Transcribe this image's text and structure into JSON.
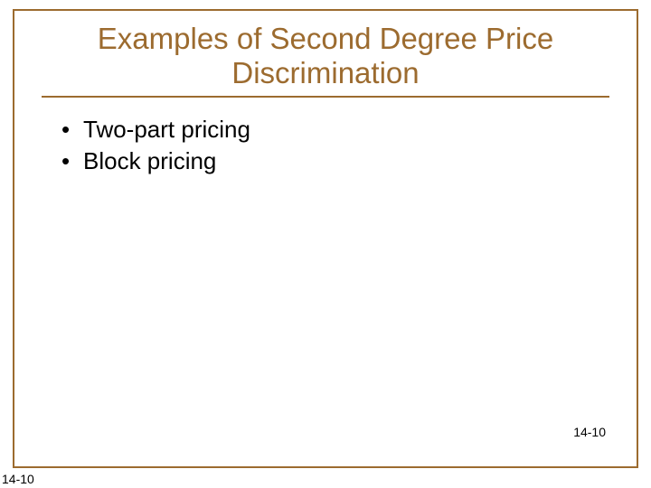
{
  "slide": {
    "title": "Examples of Second Degree Price Discrimination",
    "bullets": [
      "Two-part pricing",
      "Block pricing"
    ],
    "page_number_inner": "14-10",
    "page_number_outer": "14-10",
    "styles": {
      "border_color": "#9c6b2f",
      "title_color": "#9c6b2f",
      "title_fontsize": 33,
      "body_fontsize": 26,
      "body_color": "#000000",
      "page_number_fontsize": 14,
      "background_color": "#ffffff",
      "border_width": 2
    }
  }
}
